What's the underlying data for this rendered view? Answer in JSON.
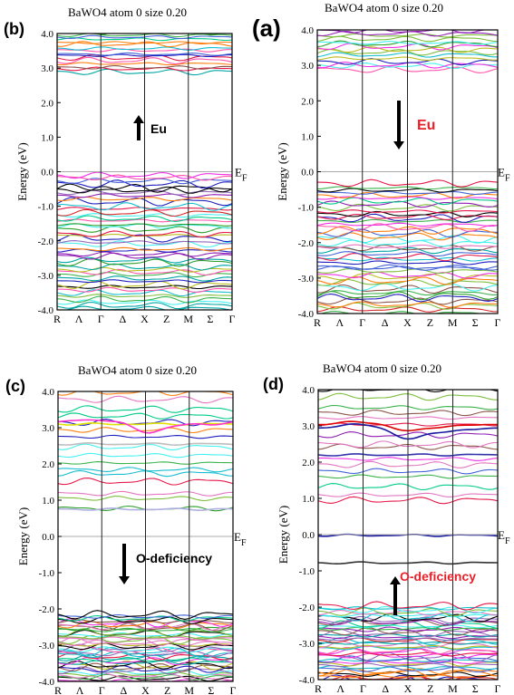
{
  "chart_data": [
    {
      "id": "b",
      "type": "line",
      "panel_label": "(b)",
      "header": "BaWO4 atom  0    size 0.20",
      "ylabel": "Energy (eV)",
      "ylim": [
        -4.0,
        4.0
      ],
      "y_ticks": [
        "-4.0",
        "-3.0",
        "-2.0",
        "-1.0",
        "0.0",
        "1.0",
        "2.0",
        "3.0",
        "4.0"
      ],
      "k_labels": [
        "R",
        "Λ",
        "Γ",
        "Δ",
        "X",
        "Z",
        "M",
        "Σ",
        "Γ"
      ],
      "fermi_label": "EF",
      "fermi_level": 0.0,
      "annotation": {
        "text": "Eu",
        "arrow": "up",
        "color": "#000000"
      },
      "bands": {
        "valence_top": -0.05,
        "valence_bottom": -4.0,
        "conduction_bottom": 2.85,
        "conduction_top": 4.0,
        "defect_levels": []
      }
    },
    {
      "id": "a",
      "type": "line",
      "panel_label": "(a)",
      "header": "BaWO4 atom  0    size 0.20",
      "ylabel": "Energy (eV)",
      "ylim": [
        -4.0,
        4.0
      ],
      "y_ticks": [
        "-4.0",
        "-3.0",
        "-2.0",
        "-1.0",
        "0.0",
        "1.0",
        "2.0",
        "3.0",
        "4.0"
      ],
      "k_labels": [
        "R",
        "Λ",
        "Γ",
        "Δ",
        "X",
        "Z",
        "M",
        "Σ",
        "Γ"
      ],
      "fermi_label": "EF",
      "fermi_level": 0.0,
      "annotation": {
        "text": "Eu",
        "arrow": "down",
        "color": "#e8202a"
      },
      "bands": {
        "valence_top": -0.3,
        "valence_bottom": -4.0,
        "conduction_bottom": 2.85,
        "conduction_top": 4.0,
        "defect_levels": []
      }
    },
    {
      "id": "c",
      "type": "line",
      "panel_label": "(c)",
      "header": "BaWO4 atom  0    size 0.20",
      "ylabel": "Energy (eV)",
      "ylim": [
        -4.0,
        4.0
      ],
      "y_ticks": [
        "-4.0",
        "-3.0",
        "-2.0",
        "-1.0",
        "0.0",
        "1.0",
        "2.0",
        "3.0",
        "4.0"
      ],
      "k_labels": [
        "R",
        "Λ",
        "Γ",
        "Δ",
        "X",
        "Z",
        "M",
        "Σ",
        "Γ"
      ],
      "fermi_label": "EF",
      "fermi_level": 0.0,
      "annotation": {
        "text": "O-deficiency",
        "arrow": "down",
        "color": "#000000"
      },
      "bands": {
        "valence_top": -2.15,
        "valence_bottom": -4.0,
        "conduction_bottom": 0.75,
        "conduction_top": 4.0,
        "defect_levels": [
          {
            "e": 2.55,
            "color": "#bdbdbd"
          },
          {
            "e": 3.1,
            "color": "#e0e000"
          },
          {
            "e": 3.15,
            "color": "#ff33cc",
            "dip": 0.35
          },
          {
            "e": 0.75,
            "color": "#b0b0e0"
          }
        ]
      }
    },
    {
      "id": "d",
      "type": "line",
      "panel_label": "(d)",
      "header": "BaWO4 atom  0    size 0.20",
      "ylabel": "Energy (eV)",
      "ylim": [
        -4.0,
        4.0
      ],
      "y_ticks": [
        "-4.0",
        "-3.0",
        "-2.0",
        "-1.0",
        "0.0",
        "1.0",
        "2.0",
        "3.0",
        "4.0"
      ],
      "k_labels": [
        "R",
        "Λ",
        "Γ",
        "Δ",
        "X",
        "Z",
        "M",
        "Σ",
        "Γ"
      ],
      "fermi_label": "EF",
      "fermi_level": 0.0,
      "annotation": {
        "text": "O-deficiency",
        "arrow": "up",
        "color": "#e8202a"
      },
      "bands": {
        "valence_top": -1.95,
        "valence_bottom": -4.0,
        "conduction_bottom": 0.85,
        "conduction_top": 4.0,
        "defect_levels": [
          {
            "e": -0.02,
            "color": "#1a1aa0"
          },
          {
            "e": -0.78,
            "color": "#333333"
          },
          {
            "e": 2.95,
            "color": "#1a1aa0",
            "dip": 0.4
          },
          {
            "e": 3.05,
            "color": "#e00000",
            "dip": 0.25
          },
          {
            "e": 2.2,
            "color": "#3333aa"
          }
        ]
      }
    }
  ]
}
